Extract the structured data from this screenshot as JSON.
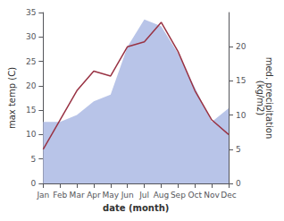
{
  "chart_data": {
    "type": "line",
    "xlabel": "date (month)",
    "ylabel": "max temp (C)",
    "y2label": "med. precipitation\n(kg/m2)",
    "categories": [
      "Jan",
      "Feb",
      "Mar",
      "Apr",
      "May",
      "Jun",
      "Jul",
      "Aug",
      "Sep",
      "Oct",
      "Nov",
      "Dec"
    ],
    "series": [
      {
        "type": "area",
        "axis": "y2",
        "color": "#b8c4e8",
        "values": [
          9,
          9,
          10,
          12,
          13,
          20,
          24,
          23,
          19,
          14,
          9,
          11
        ]
      },
      {
        "type": "line",
        "color": "#993344",
        "values": [
          7,
          13,
          19,
          23,
          22,
          28,
          29,
          33,
          27,
          19,
          13,
          10
        ]
      }
    ],
    "ylim": [
      0,
      35
    ],
    "yticks": [
      0,
      5,
      10,
      15,
      20,
      25,
      30,
      35
    ],
    "y2lim": [
      0,
      25
    ],
    "y2ticks": [
      0,
      5,
      10,
      15,
      20
    ],
    "grid": false
  }
}
